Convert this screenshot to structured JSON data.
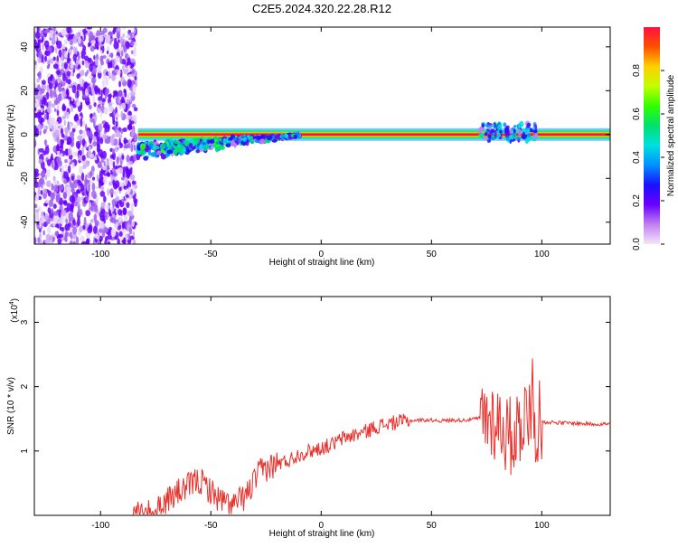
{
  "title": "C2E5.2024.320.22.28.R12",
  "colorbar": {
    "label": "Normalized spectral amplitude",
    "ticks": [
      "0.0",
      "0.2",
      "0.4",
      "0.6",
      "0.8"
    ],
    "colors": [
      "#f5e6fa",
      "#c080f0",
      "#6a00ff",
      "#1a10ff",
      "#0090ff",
      "#00e0e0",
      "#00e070",
      "#30ff00",
      "#c0ff00",
      "#ffd000",
      "#ff5000",
      "#ff1040"
    ]
  },
  "chart_data": [
    {
      "type": "heatmap",
      "xlabel": "Height of straight line (km)",
      "ylabel": "Frequency (Hz)",
      "xlim": [
        -130,
        131
      ],
      "ylim": [
        -50,
        49
      ],
      "x_ticks": [
        "-100",
        "-50",
        "0",
        "50",
        "100"
      ],
      "x_tick_values": [
        -100,
        -50,
        0,
        50,
        100
      ],
      "y_ticks": [
        "-40",
        "-20",
        "0",
        "20",
        "40"
      ],
      "y_tick_values": [
        -40,
        -20,
        0,
        20,
        40
      ],
      "noise_region_km": [
        -130,
        -84
      ],
      "carrier": {
        "frequency_hz": 0,
        "start_km": -83,
        "end_km": 131,
        "peak_amplitude": 1.0
      },
      "scatter_region_km": [
        -83,
        -10
      ],
      "scatter_band_hz": [
        -12,
        6
      ],
      "secondary_scatter_km": [
        72,
        98
      ]
    },
    {
      "type": "line",
      "xlabel": "Height of straight line (km)",
      "ylabel": "SNR (10 * v/v)",
      "y_multiplier_label": "(x10",
      "y_multiplier_exp": "4",
      "xlim": [
        -130,
        131
      ],
      "ylim": [
        0,
        3.4
      ],
      "x_ticks": [
        "-100",
        "-50",
        "0",
        "50",
        "100"
      ],
      "x_tick_values": [
        -100,
        -50,
        0,
        50,
        100
      ],
      "y_ticks": [
        "1",
        "2",
        "3"
      ],
      "y_tick_values": [
        1,
        2,
        3
      ],
      "color": "#e8312d",
      "series": [
        {
          "x": [
            -130,
            -85,
            -78,
            -74,
            -70,
            -65,
            -60,
            -56,
            -52,
            -48,
            -44,
            -40,
            -36,
            -33,
            -30,
            -27,
            -24,
            -20,
            -15,
            -10,
            -5,
            0,
            5,
            10,
            15,
            20,
            25,
            30,
            35,
            40,
            45,
            50,
            55,
            60,
            65,
            70,
            74,
            78,
            82,
            85,
            88,
            91,
            94,
            97,
            100,
            103,
            108,
            115,
            122,
            131
          ],
          "values": [
            0.0,
            0.0,
            0.02,
            0.08,
            0.25,
            0.35,
            0.45,
            0.55,
            0.45,
            0.3,
            0.2,
            0.15,
            0.25,
            0.35,
            0.55,
            0.7,
            0.75,
            0.8,
            0.85,
            0.95,
            1.0,
            1.05,
            1.1,
            1.2,
            1.25,
            1.3,
            1.38,
            1.42,
            1.45,
            1.47,
            1.48,
            1.48,
            1.47,
            1.48,
            1.48,
            1.5,
            1.52,
            1.5,
            1.4,
            1.2,
            1.3,
            1.5,
            1.6,
            1.45,
            1.45,
            1.45,
            1.44,
            1.43,
            1.42,
            1.42
          ]
        }
      ]
    }
  ]
}
